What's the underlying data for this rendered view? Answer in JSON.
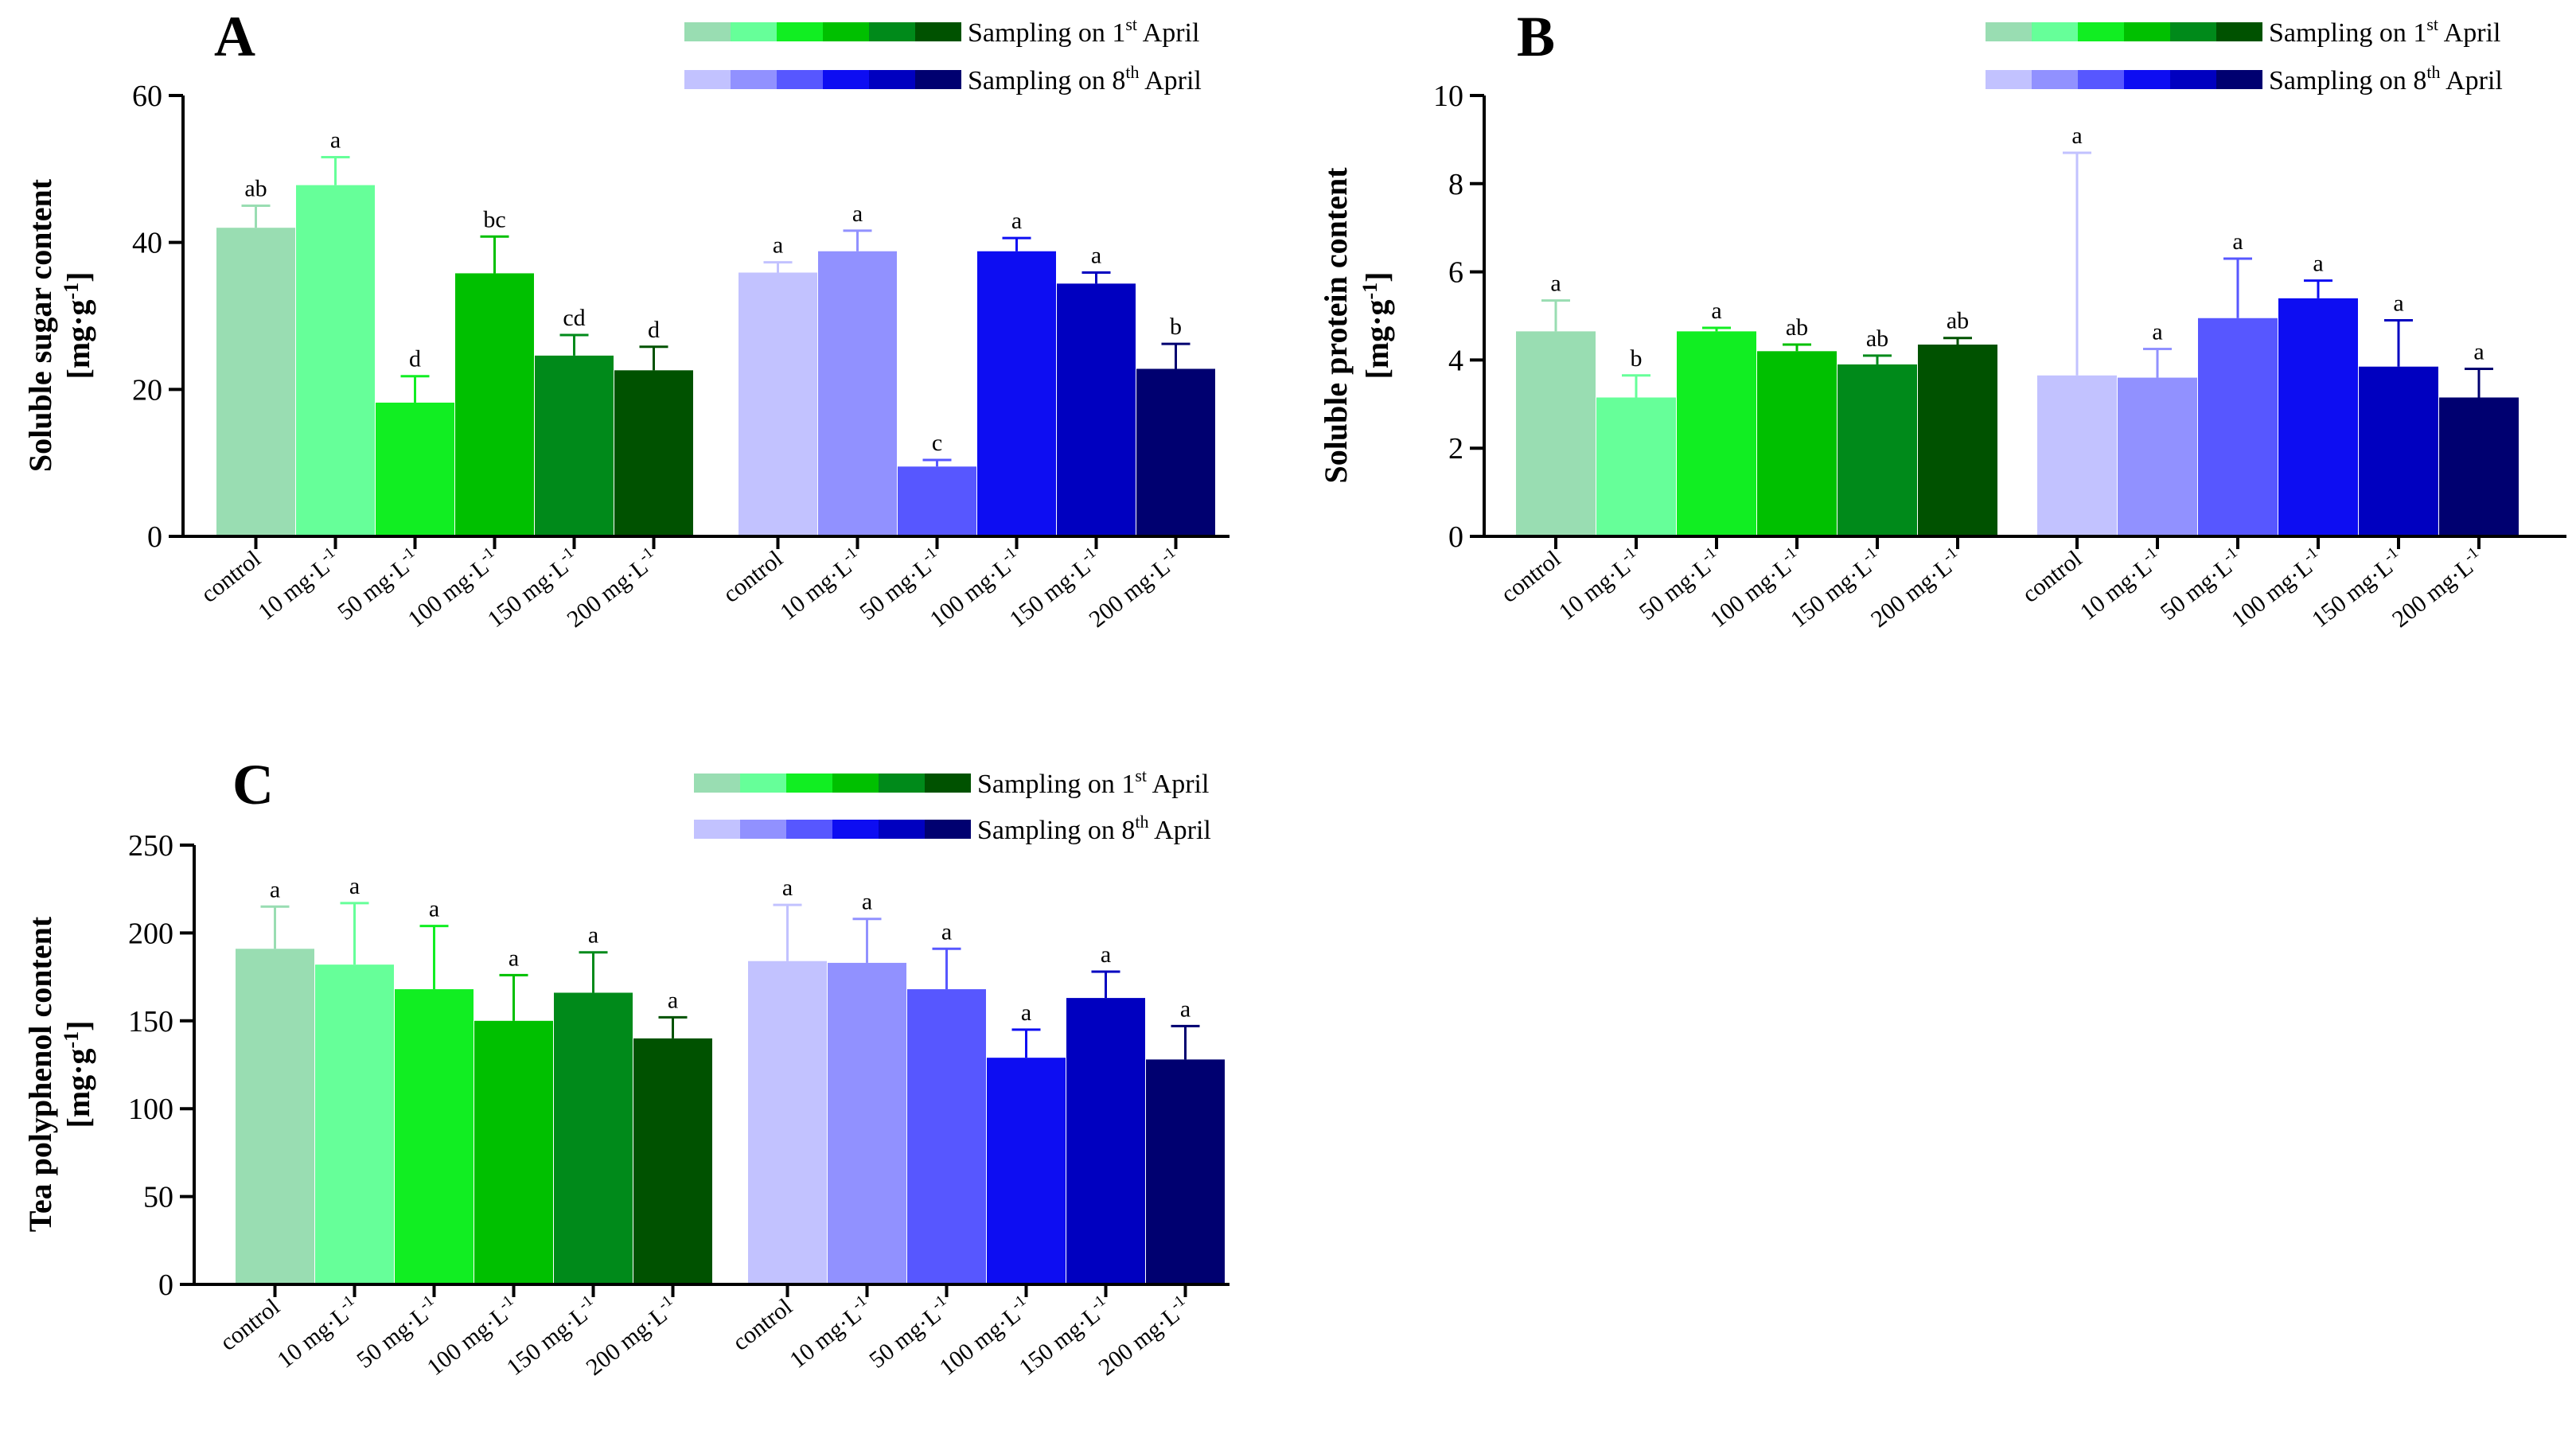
{
  "legend": {
    "entry1": {
      "prefix": "Sampling on 1",
      "sup": "st",
      "suffix": " April",
      "colors": [
        "#99ddb2",
        "#66ff99",
        "#11ee22",
        "#00c000",
        "#008a1a",
        "#005200"
      ]
    },
    "entry2": {
      "prefix": "Sampling on 8",
      "sup": "th",
      "suffix": " April",
      "colors": [
        "#c2c2ff",
        "#9191ff",
        "#5757ff",
        "#0d0df2",
        "#0000c0",
        "#000070"
      ]
    }
  },
  "chart_data": [
    {
      "type": "bar",
      "panel": "A",
      "ylabel_line1": "Soluble sugar content",
      "ylabel_unit": "[mg·g",
      "ylabel_exp": "-1",
      "ylabel_close": "]",
      "ylim": [
        0,
        60
      ],
      "yticks": [
        "0",
        "20",
        "40",
        "60"
      ],
      "categories": [
        "control",
        "10 mg·L",
        "50 mg·L",
        "100 mg·L",
        "150 mg·L",
        "200 mg·L"
      ],
      "unit_exp": "-1",
      "series": [
        {
          "name": "Sampling on 1st April",
          "values": [
            42,
            47.8,
            18.2,
            35.8,
            24.6,
            22.6
          ],
          "errors": [
            3,
            3.8,
            3.6,
            5.0,
            2.8,
            3.2
          ],
          "letters": [
            "ab",
            "a",
            "d",
            "bc",
            "cd",
            "d"
          ]
        },
        {
          "name": "Sampling on 8th April",
          "values": [
            35.9,
            38.8,
            9.5,
            38.8,
            34.4,
            22.8
          ],
          "errors": [
            1.4,
            2.8,
            0.9,
            1.8,
            1.5,
            3.4
          ],
          "letters": [
            "a",
            "a",
            "c",
            "a",
            "a",
            "b"
          ]
        }
      ]
    },
    {
      "type": "bar",
      "panel": "B",
      "ylabel_line1": "Soluble protein content",
      "ylabel_unit": "[mg·g",
      "ylabel_exp": "-1",
      "ylabel_close": "]",
      "ylim": [
        0,
        10
      ],
      "yticks": [
        "0",
        "2",
        "4",
        "6",
        "8",
        "10"
      ],
      "categories": [
        "control",
        "10 mg·L",
        "50 mg·L",
        "100 mg·L",
        "150 mg·L",
        "200 mg·L"
      ],
      "unit_exp": "-1",
      "series": [
        {
          "name": "Sampling on 1st April",
          "values": [
            4.65,
            3.15,
            4.65,
            4.2,
            3.9,
            4.35
          ],
          "errors": [
            0.7,
            0.5,
            0.08,
            0.15,
            0.2,
            0.15
          ],
          "letters": [
            "a",
            "b",
            "a",
            "ab",
            "ab",
            "ab"
          ]
        },
        {
          "name": "Sampling on 8th April",
          "values": [
            3.65,
            3.6,
            4.95,
            5.4,
            3.85,
            3.15
          ],
          "errors": [
            5.05,
            0.65,
            1.35,
            0.4,
            1.05,
            0.65
          ],
          "letters": [
            "a",
            "a",
            "a",
            "a",
            "a",
            "a"
          ]
        }
      ]
    },
    {
      "type": "bar",
      "panel": "C",
      "ylabel_line1": "Tea polyphenol content",
      "ylabel_unit": "[mg·g",
      "ylabel_exp": "-1",
      "ylabel_close": "]",
      "ylim": [
        0,
        250
      ],
      "yticks": [
        "0",
        "50",
        "100",
        "150",
        "200",
        "250"
      ],
      "categories": [
        "control",
        "10 mg·L",
        "50 mg·L",
        "100 mg·L",
        "150 mg·L",
        "200 mg·L"
      ],
      "unit_exp": "-1",
      "series": [
        {
          "name": "Sampling on 1st April",
          "values": [
            191,
            182,
            168,
            150,
            166,
            140
          ],
          "errors": [
            24,
            35,
            36,
            26,
            23,
            12
          ],
          "letters": [
            "a",
            "a",
            "a",
            "a",
            "a",
            "a"
          ]
        },
        {
          "name": "Sampling on 8th April",
          "values": [
            184,
            183,
            168,
            129,
            163,
            128
          ],
          "errors": [
            32,
            25,
            23,
            16,
            15,
            19
          ],
          "letters": [
            "a",
            "a",
            "a",
            "a",
            "a",
            "a"
          ]
        }
      ]
    }
  ]
}
